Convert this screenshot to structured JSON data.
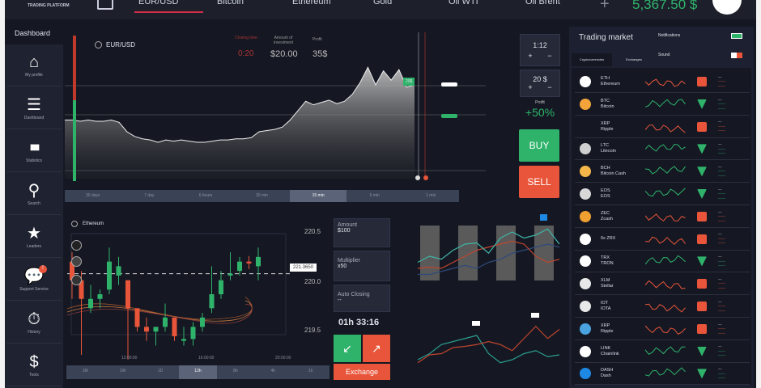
{
  "header": {
    "logo_subtitle": "TRADING PLATFORM",
    "tabs": [
      "EUR/USD",
      "Bitcoin",
      "Ethereum",
      "Gold",
      "Oil WTI",
      "Oil Brent"
    ],
    "active_tab": "EUR/USD",
    "add_label": "+",
    "balance": "5,367.50 $"
  },
  "page_title": "Dashboard",
  "sidebar": {
    "items": [
      {
        "label": "My profile",
        "icon": "⌂"
      },
      {
        "label": "Dashboard",
        "icon": "☰"
      },
      {
        "label": "Statistics",
        "icon": "▮▮▮"
      },
      {
        "label": "Search",
        "icon": "⚲"
      },
      {
        "label": "Leaders",
        "icon": "★"
      },
      {
        "label": "Support Service",
        "icon": "💬",
        "badge": "!"
      },
      {
        "label": "History",
        "icon": "⏱"
      },
      {
        "label": "Tools",
        "icon": "$"
      }
    ]
  },
  "main_chart": {
    "symbol": "EUR/USD",
    "closing_time_label": "Closing time",
    "closing_time": "0:20",
    "investment_label": "Amount of investment",
    "investment": "$20.00",
    "profit_label": "Profit",
    "profit": "35$",
    "marker": "20$",
    "timeframes": [
      "30 days",
      "7 day",
      "6 hours",
      "30 min",
      "15 min",
      "5 min",
      "1 min"
    ],
    "active_timeframe": "15 min",
    "series": [
      0.5,
      0.5,
      0.49,
      0.5,
      0.49,
      0.49,
      0.5,
      0.48,
      0.4,
      0.36,
      0.34,
      0.33,
      0.31,
      0.33,
      0.32,
      0.33,
      0.32,
      0.31,
      0.31,
      0.32,
      0.33,
      0.33,
      0.34,
      0.34,
      0.35,
      0.4,
      0.41,
      0.42,
      0.44,
      0.5,
      0.58,
      0.66,
      0.63,
      0.65,
      0.67,
      0.64,
      0.66,
      0.72,
      0.82,
      0.95,
      0.8,
      0.92,
      0.84,
      0.93,
      0.78,
      0.8
    ]
  },
  "controls": {
    "leverage": "1:12",
    "amount": "20 $",
    "profit_label": "Profit",
    "profit": "+50%",
    "buy": "BUY",
    "sell": "SELL",
    "plus": "+",
    "minus": "−"
  },
  "candle_chart": {
    "symbol": "Ethereum",
    "prices": [
      "220.5",
      "220.0",
      "219.5"
    ],
    "current_price": "221.3650",
    "times": [
      "12:00:00",
      "16:00:00",
      "20:00:00"
    ],
    "timeframes": [
      "1M",
      "1W",
      "1D",
      "12h",
      "8h",
      "4h",
      "1h"
    ],
    "active_timeframe": "12h",
    "candles": [
      [
        220.3,
        220.1,
        220.4,
        219.9
      ],
      [
        220.1,
        219.9,
        220.2,
        219.3
      ],
      [
        219.8,
        219.9,
        220.05,
        219.75
      ],
      [
        219.9,
        219.95,
        220.0,
        219.8
      ],
      [
        220.0,
        220.3,
        220.45,
        219.95
      ],
      [
        220.15,
        220.25,
        220.35,
        220.05
      ],
      [
        220.1,
        219.8,
        220.1,
        219.25
      ],
      [
        219.8,
        219.6,
        219.8,
        219.55
      ],
      [
        219.6,
        219.55,
        219.7,
        219.45
      ],
      [
        219.55,
        219.6,
        219.6,
        219.4
      ],
      [
        219.6,
        219.7,
        219.85,
        219.55
      ],
      [
        219.7,
        219.5,
        219.7,
        219.45
      ],
      [
        219.45,
        219.47,
        219.6,
        219.4
      ],
      [
        219.47,
        219.6,
        219.65,
        219.4
      ],
      [
        219.6,
        219.7,
        219.75,
        219.55
      ],
      [
        219.8,
        219.95,
        220.25,
        219.75
      ],
      [
        219.95,
        220.1,
        220.2,
        219.9
      ],
      [
        220.15,
        220.17,
        220.4,
        220.1
      ],
      [
        220.2,
        220.3,
        220.35,
        220.15
      ],
      [
        220.3,
        220.28,
        220.36,
        220.22
      ],
      [
        220.25,
        220.35,
        220.45,
        220.1
      ]
    ]
  },
  "trade_form": {
    "amount_label": "Amount",
    "amount": "$100",
    "multiplier_label": "Multiplier",
    "multiplier": "x50",
    "auto_closing_label": "Auto Closing",
    "auto_closing": "--",
    "timer": "01h 33:16",
    "exchange": "Exchange"
  },
  "mini_charts": {
    "bar_line": {
      "teal": [
        0.3,
        0.4,
        0.35,
        0.5,
        0.6,
        0.62,
        0.45,
        0.7,
        0.8,
        0.7,
        0.75,
        0.85,
        0.6
      ],
      "red": [
        0.2,
        0.22,
        0.2,
        0.3,
        0.4,
        0.5,
        0.55,
        0.6,
        0.65,
        0.6,
        0.4,
        0.3,
        0.35
      ],
      "blue": [
        0.1,
        0.1,
        0.15,
        0.2,
        0.25,
        0.2,
        0.3,
        0.35,
        0.45,
        0.5,
        0.55,
        0.6,
        0.55
      ]
    },
    "line": {
      "teal": [
        0.2,
        0.3,
        0.45,
        0.5,
        0.55,
        0.6,
        0.3,
        0.15,
        0.2,
        0.3,
        0.35,
        0.25,
        0.28
      ],
      "red": [
        0.15,
        0.28,
        0.3,
        0.4,
        0.42,
        0.45,
        0.5,
        0.45,
        0.35,
        0.55,
        0.75,
        0.55,
        0.7
      ]
    }
  },
  "market": {
    "title": "Trading market",
    "notifications_label": "Notifications",
    "notifications_on": true,
    "sound_label": "Sound",
    "sound_on": false,
    "tabs": [
      "Cryptocurrencies",
      "Exchanges"
    ],
    "rows": [
      {
        "sym": "ETH",
        "name": "Ethereum",
        "up": false,
        "color": "#ffffff"
      },
      {
        "sym": "BTC",
        "name": "Bitcoin",
        "up": true,
        "color": "#f2a33a"
      },
      {
        "sym": "XRP",
        "name": "Ripple",
        "up": false,
        "color": "#151823"
      },
      {
        "sym": "LTC",
        "name": "Litecoin",
        "up": true,
        "color": "#cfcfcf"
      },
      {
        "sym": "BCH",
        "name": "Bitcoin Cash",
        "up": true,
        "color": "#f5b74a"
      },
      {
        "sym": "EOS",
        "name": "EOS",
        "up": true,
        "color": "#d8d8d8"
      },
      {
        "sym": "ZEC",
        "name": "Zcash",
        "up": false,
        "color": "#f0a030"
      },
      {
        "sym": "",
        "name": "0x ZRX",
        "up": false,
        "color": "#ffffff"
      },
      {
        "sym": "TRX",
        "name": "TRON",
        "up": true,
        "color": "#ffffff"
      },
      {
        "sym": "XLM",
        "name": "Stellar",
        "up": false,
        "color": "#e8e8e8"
      },
      {
        "sym": "IOT",
        "name": "IOTA",
        "up": false,
        "color": "#e8e8e8"
      },
      {
        "sym": "XRP",
        "name": "Ripple",
        "up": false,
        "color": "#4aa3df"
      },
      {
        "sym": "LINK",
        "name": "Chainlink",
        "up": true,
        "color": "#ffffff"
      },
      {
        "sym": "DASH",
        "name": "Dash",
        "up": true,
        "color": "#1e88e5"
      }
    ]
  },
  "colors": {
    "green": "#2fb36b",
    "red": "#e8553a",
    "accent_underline": "#d12e4a",
    "background": "#151823"
  }
}
